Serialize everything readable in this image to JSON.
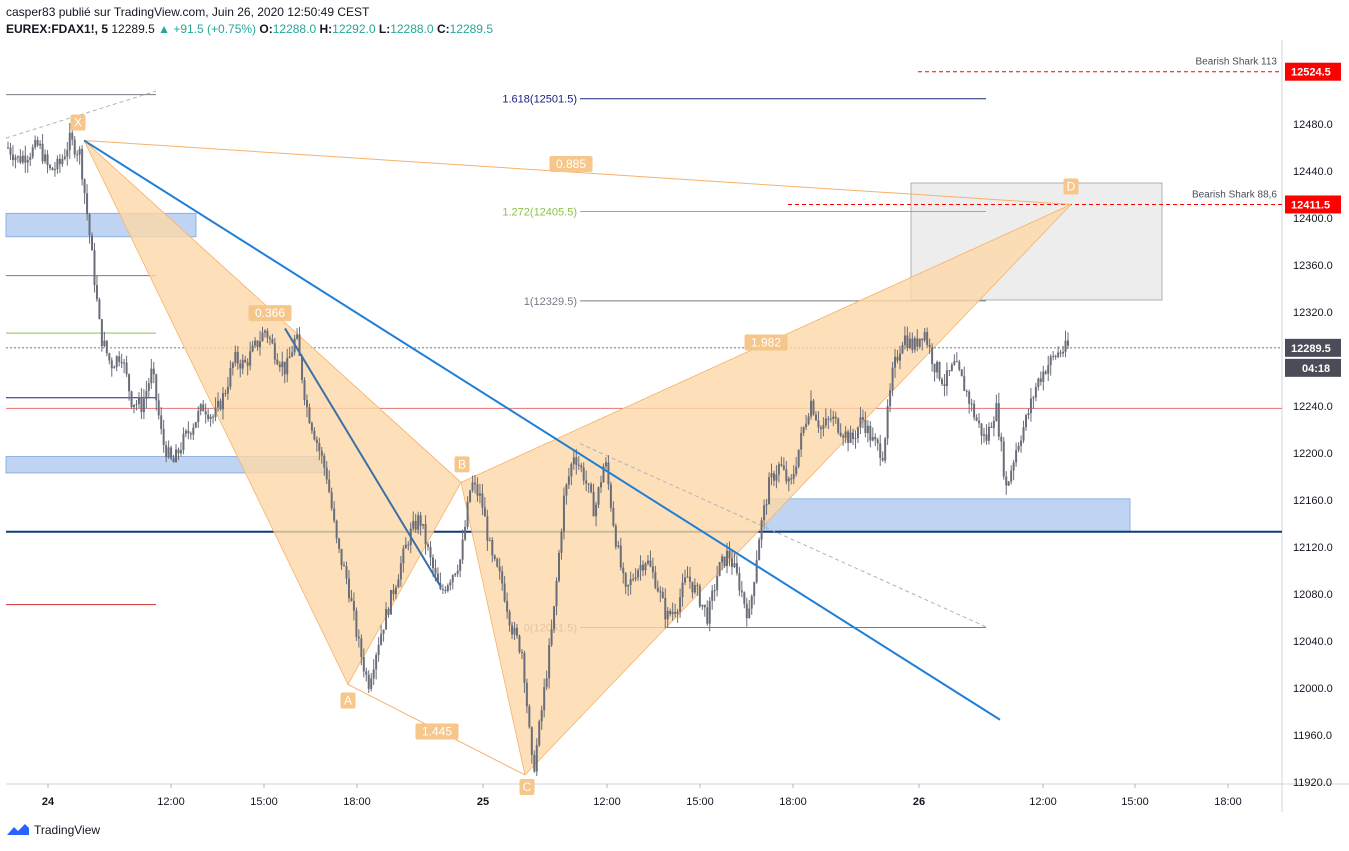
{
  "header": {
    "line1": "casper83 publié sur TradingView.com, Juin 26, 2020 12:50:49 CEST",
    "symbol": "EUREX:FDAX1!, 5",
    "last": "12289.5",
    "change": "▲ +91.5 (+0.75%)",
    "o_label": "O:",
    "o": "12288.0",
    "h_label": "H:",
    "h": "12292.0",
    "l_label": "L:",
    "l": "12288.0",
    "c_label": "C:",
    "c": "12289.5"
  },
  "footer": {
    "brand": "TradingView"
  },
  "colors": {
    "pattern_fill": "#fdd8a8",
    "pattern_label": "#f6c68a",
    "trendline": "#1e7fd6",
    "zone_blue": "#a9c6ef",
    "candle": "#6a6d78",
    "level_red": "#ff0000",
    "price_tag": "#4a4d57"
  },
  "chart_data": {
    "type": "candlestick",
    "title": "EUREX:FDAX1!, 5",
    "y_axis": {
      "ticks": [
        12480,
        12440,
        12400,
        12360,
        12320,
        12240,
        12200,
        12160,
        12120,
        12080,
        12040,
        12000,
        11960,
        11920
      ]
    },
    "x_axis": {
      "ticks": [
        "24",
        "12:00",
        "15:00",
        "18:00",
        "25",
        "12:00",
        "15:00",
        "18:00",
        "26",
        "12:00",
        "15:00",
        "18:00"
      ]
    },
    "price_tags": [
      {
        "value": "12524.5",
        "kind": "alert-red"
      },
      {
        "value": "12411.5",
        "kind": "alert-red"
      },
      {
        "value": "12289.5",
        "kind": "last"
      },
      {
        "value": "04:18",
        "kind": "countdown"
      }
    ],
    "horizontal_lines": [
      {
        "name": "Bearish Shark 113",
        "value": 12524.5,
        "style": "dashed-red"
      },
      {
        "name": "Bearish Shark 88,6",
        "value": 12411.5,
        "style": "dashed-red"
      }
    ],
    "fib_levels": [
      {
        "label": "1.618(12501.5)",
        "value": 12501.5,
        "color": "#1a237e"
      },
      {
        "label": "1.272(12405.5)",
        "value": 12405.5,
        "color": "#8bc34a"
      },
      {
        "label": "1(12329.5)",
        "value": 12329.5,
        "color": "#787b86"
      },
      {
        "label": "0(12051.5)",
        "value": 12051.5,
        "color": "#787b86"
      }
    ],
    "harmonic_points": [
      {
        "label": "X",
        "value": 12466
      },
      {
        "label": "A",
        "value": 12003
      },
      {
        "label": "B",
        "value": 12175
      },
      {
        "label": "C",
        "value": 11926
      },
      {
        "label": "D",
        "value": 12411.5
      }
    ],
    "ratios": [
      "0.885",
      "0.366",
      "1.445",
      "1.982"
    ],
    "candles": {
      "count": 430,
      "path": [
        12460,
        12450,
        12455,
        12462,
        12440,
        12445,
        12466,
        12455,
        12380,
        12300,
        12275,
        12285,
        12245,
        12240,
        12270,
        12210,
        12190,
        12210,
        12225,
        12240,
        12230,
        12250,
        12280,
        12275,
        12290,
        12305,
        12285,
        12270,
        12300,
        12240,
        12210,
        12180,
        12120,
        12090,
        12040,
        12003,
        12040,
        12070,
        12100,
        12130,
        12145,
        12110,
        12080,
        12095,
        12110,
        12175,
        12160,
        12110,
        12090,
        12050,
        12030,
        11926,
        11990,
        12060,
        12160,
        12200,
        12180,
        12150,
        12195,
        12130,
        12080,
        12100,
        12110,
        12090,
        12060,
        12070,
        12095,
        12080,
        12060,
        12100,
        12115,
        12090,
        12060,
        12130,
        12175,
        12190,
        12170,
        12210,
        12245,
        12220,
        12230,
        12220,
        12210,
        12230,
        12210,
        12200,
        12270,
        12300,
        12290,
        12305,
        12275,
        12260,
        12275,
        12255,
        12230,
        12210,
        12240,
        12170,
        12205,
        12230,
        12260,
        12275,
        12285,
        12290
      ]
    }
  }
}
